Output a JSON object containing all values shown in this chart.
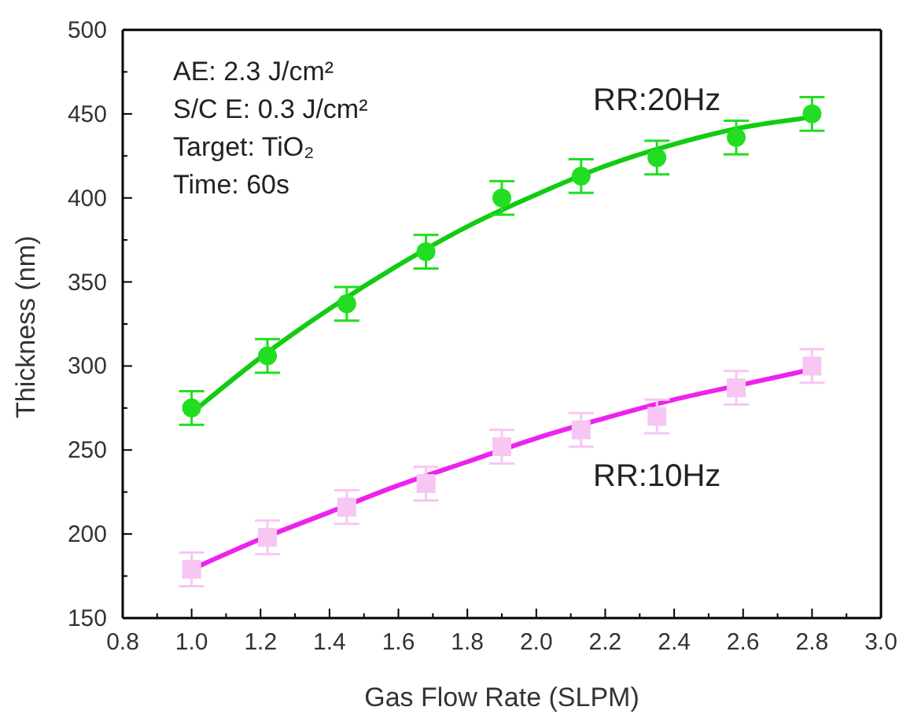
{
  "chart_data": {
    "type": "scatter",
    "xlabel": "Gas Flow Rate (SLPM)",
    "ylabel": "Thickness (nm)",
    "annotations": [
      "AE: 2.3 J/cm²",
      "S/C E: 0.3 J/cm²",
      "Target: TiO₂",
      "Time: 60s"
    ],
    "xlim": [
      0.8,
      3.0
    ],
    "xticks": [
      {
        "value": 0.8,
        "label": "0.8"
      },
      {
        "value": 0.9,
        "label": null
      },
      {
        "value": 1,
        "label": "1.0"
      },
      {
        "value": 1.1,
        "label": null
      },
      {
        "value": 1.2,
        "label": "1.2"
      },
      {
        "value": 1.3,
        "label": null
      },
      {
        "value": 1.4,
        "label": "1.4"
      },
      {
        "value": 1.5,
        "label": null
      },
      {
        "value": 1.6,
        "label": "1.6"
      },
      {
        "value": 1.7,
        "label": null
      },
      {
        "value": 1.8,
        "label": "1.8"
      },
      {
        "value": 1.9,
        "label": null
      },
      {
        "value": 2,
        "label": "2.0"
      },
      {
        "value": 2.1,
        "label": null
      },
      {
        "value": 2.2,
        "label": "2.2"
      },
      {
        "value": 2.3,
        "label": null
      },
      {
        "value": 2.4,
        "label": "2.4"
      },
      {
        "value": 2.5,
        "label": null
      },
      {
        "value": 2.6,
        "label": "2.6"
      },
      {
        "value": 2.7,
        "label": null
      },
      {
        "value": 2.8,
        "label": "2.8"
      },
      {
        "value": 2.9,
        "label": null
      },
      {
        "value": 3,
        "label": "3.0"
      }
    ],
    "ylim": [
      150,
      500
    ],
    "yticks": [
      150,
      {
        "value": 175,
        "label": null
      },
      200,
      {
        "value": 225,
        "label": null
      },
      250,
      {
        "value": 275,
        "label": null
      },
      300,
      {
        "value": 325,
        "label": null
      },
      350,
      {
        "value": 375,
        "label": null
      },
      400,
      {
        "value": 425,
        "label": null
      },
      450,
      {
        "value": 475,
        "label": null
      },
      500
    ],
    "grid": false,
    "legend": false,
    "series": [
      {
        "name": "RR:20Hz",
        "color": "#22dd22",
        "marker": "circle",
        "x": [
          1.0,
          1.22,
          1.45,
          1.68,
          1.9,
          2.13,
          2.35,
          2.58,
          2.8
        ],
        "values": [
          275,
          306,
          337,
          368,
          400,
          413,
          424,
          436,
          450
        ],
        "errors": [
          10,
          10,
          10,
          10,
          10,
          10,
          10,
          10,
          10
        ]
      },
      {
        "name": "RR:10Hz",
        "color": "#f7c6f3",
        "marker": "square",
        "x": [
          1.0,
          1.22,
          1.45,
          1.68,
          1.9,
          2.13,
          2.35,
          2.58,
          2.8
        ],
        "values": [
          179,
          198,
          216,
          230,
          252,
          262,
          270,
          287,
          300
        ],
        "errors": [
          10,
          10,
          10,
          10,
          10,
          10,
          10,
          10,
          10
        ]
      },
      {
        "type": "line",
        "color": "#11cc11",
        "marker": "none",
        "line_style": "solid",
        "x": [
          1.0,
          1.2,
          1.4,
          1.6,
          1.8,
          2.0,
          2.2,
          2.4,
          2.6,
          2.8
        ],
        "values": [
          272,
          305,
          334,
          360,
          383,
          402,
          419,
          432,
          442,
          448
        ]
      },
      {
        "type": "line",
        "color": "#ee22ee",
        "marker": "none",
        "line_style": "solid",
        "x": [
          1.0,
          1.2,
          1.4,
          1.6,
          1.8,
          2.0,
          2.2,
          2.4,
          2.6,
          2.8
        ],
        "values": [
          179,
          197,
          213,
          229,
          243,
          257,
          269,
          280,
          289,
          298
        ]
      }
    ]
  }
}
